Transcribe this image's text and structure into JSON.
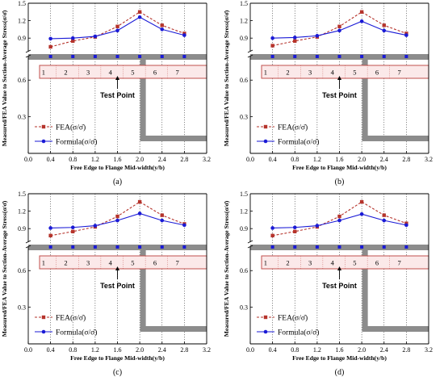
{
  "chart_data": [
    {
      "type": "line",
      "panel_label": "(a)",
      "xlabel": "Free Edge to Flange Mid-width(y/b)",
      "ylabel": "Measured/FEA Value to Section-Average Stress(σ/σ̄)",
      "xlim": [
        0.0,
        3.2
      ],
      "x_ticks": [
        "0.0",
        "0.4",
        "0.8",
        "1.2",
        "1.6",
        "2.0",
        "2.4",
        "2.8",
        "3.2"
      ],
      "y_ticks_upper": [
        "0.9",
        "1.2",
        "1.5"
      ],
      "y_ticks_lower": [
        "0.3",
        "0.6"
      ],
      "ylim_upper": [
        0.75,
        1.5
      ],
      "segments": [
        "1",
        "2",
        "3",
        "4",
        "5",
        "6",
        "7"
      ],
      "annotation": "Test Point",
      "x": [
        0.4,
        0.8,
        1.2,
        1.6,
        2.0,
        2.4,
        2.8
      ],
      "series": [
        {
          "name": "FEA(σ/σ̄)",
          "values": [
            0.75,
            0.85,
            0.92,
            1.1,
            1.35,
            1.12,
            0.98
          ]
        },
        {
          "name": "Formula(σ/σ̄)",
          "values": [
            0.89,
            0.9,
            0.93,
            1.03,
            1.26,
            1.05,
            0.95
          ]
        }
      ]
    },
    {
      "type": "line",
      "panel_label": "(b)",
      "xlabel": "Free Edge to Flange Mid-width(y/b)",
      "ylabel": "Measured/FEA Value to Section-Average Stress(σ/σ̄)",
      "xlim": [
        0.0,
        3.2
      ],
      "x_ticks": [
        "0.0",
        "0.4",
        "0.8",
        "1.2",
        "1.6",
        "2.0",
        "2.4",
        "2.8",
        "3.2"
      ],
      "y_ticks_upper": [
        "0.9",
        "1.2",
        "1.5"
      ],
      "y_ticks_lower": [
        "0.3",
        "0.6"
      ],
      "ylim_upper": [
        0.75,
        1.5
      ],
      "segments": [
        "1",
        "2",
        "3",
        "4",
        "5",
        "6",
        "7"
      ],
      "annotation": "Test Point",
      "x": [
        0.4,
        0.8,
        1.2,
        1.6,
        2.0,
        2.4,
        2.8
      ],
      "series": [
        {
          "name": "FEA(σ/σ̄)",
          "values": [
            0.77,
            0.85,
            0.92,
            1.1,
            1.35,
            1.12,
            0.98
          ]
        },
        {
          "name": "Formula(σ/σ̄)",
          "values": [
            0.9,
            0.91,
            0.94,
            1.03,
            1.19,
            1.03,
            0.95
          ]
        }
      ]
    },
    {
      "type": "line",
      "panel_label": "(c)",
      "xlabel": "Free Edge to Flange Mid-width(y/b)",
      "ylabel": "Measured/FEA Value to Section-Average Stress(σ/σ̄)",
      "xlim": [
        0.0,
        3.2
      ],
      "x_ticks": [
        "0.0",
        "0.4",
        "0.8",
        "1.2",
        "1.6",
        "2.0",
        "2.4",
        "2.8",
        "3.2"
      ],
      "y_ticks_upper": [
        "0.9",
        "1.2",
        "1.5"
      ],
      "y_ticks_lower": [
        "0.3",
        "0.6"
      ],
      "ylim_upper": [
        0.75,
        1.5
      ],
      "segments": [
        "1",
        "2",
        "3",
        "4",
        "5",
        "6",
        "7"
      ],
      "annotation": "Test Point",
      "x": [
        0.4,
        0.8,
        1.2,
        1.6,
        2.0,
        2.4,
        2.8
      ],
      "series": [
        {
          "name": "FEA(σ/σ̄)",
          "values": [
            0.78,
            0.85,
            0.93,
            1.11,
            1.36,
            1.13,
            0.98
          ]
        },
        {
          "name": "Formula(σ/σ̄)",
          "values": [
            0.91,
            0.92,
            0.95,
            1.04,
            1.16,
            1.04,
            0.96
          ]
        }
      ]
    },
    {
      "type": "line",
      "panel_label": "(d)",
      "xlabel": "Free Edge to Flange Mid-width(y/b)",
      "ylabel": "Measured/FEA Value to Section-Average Stress(σ/σ̄)",
      "xlim": [
        0.0,
        3.2
      ],
      "x_ticks": [
        "0.0",
        "0.4",
        "0.8",
        "1.2",
        "1.6",
        "2.0",
        "2.4",
        "2.8",
        "3.2"
      ],
      "y_ticks_upper": [
        "0.9",
        "1.2",
        "1.5"
      ],
      "y_ticks_lower": [
        "0.3",
        "0.6"
      ],
      "ylim_upper": [
        0.75,
        1.5
      ],
      "segments": [
        "1",
        "2",
        "3",
        "4",
        "5",
        "6",
        "7"
      ],
      "annotation": "Test Point",
      "x": [
        0.4,
        0.8,
        1.2,
        1.6,
        2.0,
        2.4,
        2.8
      ],
      "series": [
        {
          "name": "FEA(σ/σ̄)",
          "values": [
            0.78,
            0.85,
            0.93,
            1.11,
            1.36,
            1.13,
            0.99
          ]
        },
        {
          "name": "Formula(σ/σ̄)",
          "values": [
            0.91,
            0.92,
            0.95,
            1.04,
            1.15,
            1.04,
            0.96
          ]
        }
      ]
    }
  ],
  "colors": {
    "fea": "#b5332b",
    "formula": "#1a1ad6",
    "marker_row": "#1a1ad6",
    "gray_bar": "#8c8c8c",
    "segment_border": "#c0504d",
    "segment_fill": "#fbe9e9"
  }
}
